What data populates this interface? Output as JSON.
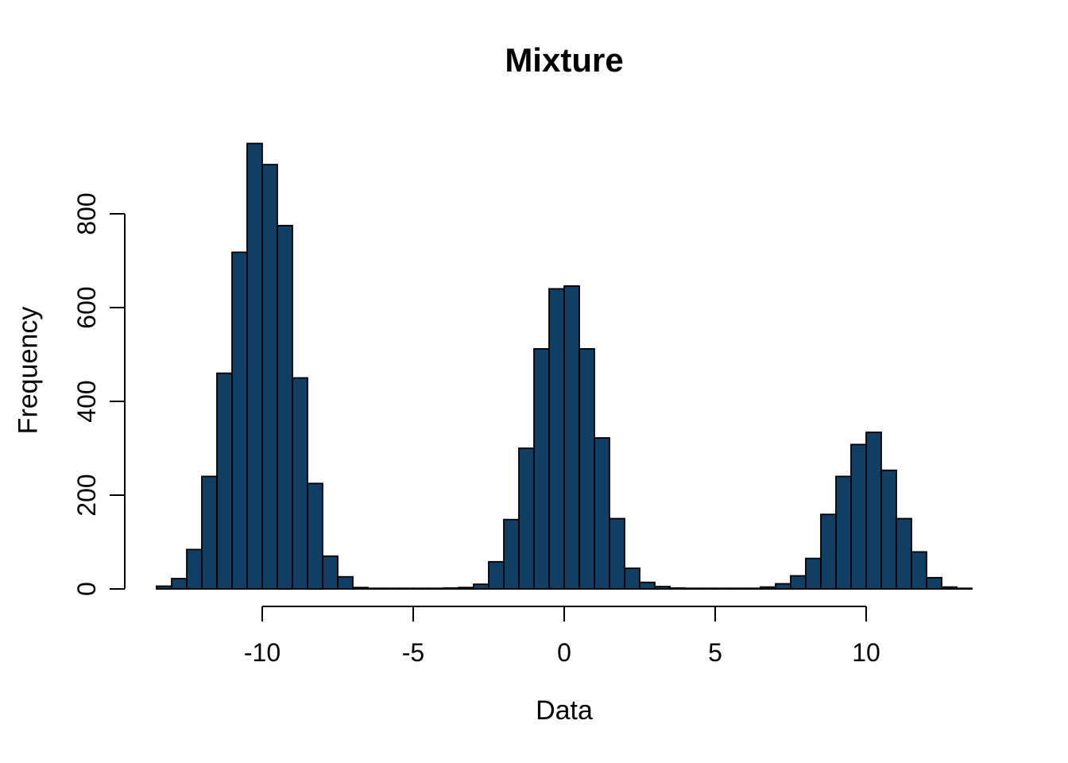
{
  "chart_data": {
    "type": "bar",
    "subtype": "histogram",
    "title": "Mixture",
    "xlabel": "Data",
    "ylabel": "Frequency",
    "bin_start": -13.5,
    "bin_width": 0.5,
    "counts": [
      6,
      22,
      84,
      240,
      460,
      718,
      950,
      905,
      775,
      450,
      225,
      70,
      26,
      3,
      1,
      1,
      1,
      1,
      1,
      2,
      3,
      10,
      58,
      148,
      300,
      512,
      640,
      646,
      512,
      322,
      150,
      44,
      14,
      5,
      2,
      1,
      1,
      1,
      1,
      1,
      4,
      11,
      28,
      65,
      159,
      240,
      308,
      334,
      253,
      150,
      79,
      24,
      4,
      1
    ],
    "x_ticks": [
      -10,
      -5,
      0,
      5,
      10
    ],
    "y_ticks": [
      0,
      200,
      400,
      600,
      800
    ],
    "xlim": [
      -13.5,
      13.5
    ],
    "ylim": [
      0,
      950
    ],
    "grid": "off",
    "legend": "none",
    "colors": {
      "bar_fill": "#113E63",
      "bar_stroke": "#000000",
      "axis": "#000000",
      "text": "#000000",
      "background": "#FFFFFF"
    }
  }
}
